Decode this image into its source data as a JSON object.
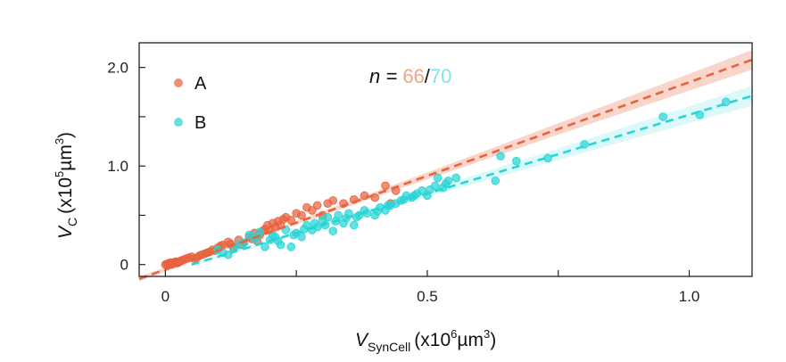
{
  "chart_data": {
    "type": "scatter",
    "title": "",
    "xlabel": {
      "base": "V",
      "sub": "SynCell",
      "unit_prefix": "(x10",
      "unit_exp": "6",
      "unit_mid": "µm",
      "unit_exp2": "3",
      "unit_suffix": ")"
    },
    "ylabel": {
      "base": "V",
      "sub": "C",
      "unit_prefix": "(x10",
      "unit_exp": "5",
      "unit_mid": "µm",
      "unit_exp2": "3",
      "unit_suffix": ")"
    },
    "xlim": [
      -0.05,
      1.12
    ],
    "ylim": [
      -0.12,
      2.25
    ],
    "x_ticks": [
      {
        "value": 0,
        "label": "0"
      },
      {
        "value": 0.25,
        "label": ""
      },
      {
        "value": 0.5,
        "label": "0.5"
      },
      {
        "value": 0.75,
        "label": ""
      },
      {
        "value": 1.0,
        "label": "1.0"
      }
    ],
    "y_ticks": [
      {
        "value": 0,
        "label": "0"
      },
      {
        "value": 0.5,
        "label": ""
      },
      {
        "value": 1.0,
        "label": "1.0"
      },
      {
        "value": 1.5,
        "label": ""
      },
      {
        "value": 2.0,
        "label": "2.0"
      }
    ],
    "annotation": {
      "prefix": "n = ",
      "a_count": "66",
      "separator": "/",
      "b_count": "70"
    },
    "legend_position": "top-left",
    "series": [
      {
        "name": "A",
        "color": "#e8633e",
        "band_color": "#f2a48c",
        "fit": {
          "slope": 1.9,
          "intercept": -0.05,
          "x_range": [
            -0.05,
            1.12
          ]
        },
        "points": [
          [
            0.0,
            0.0
          ],
          [
            0.005,
            0.01
          ],
          [
            0.01,
            0.02
          ],
          [
            0.015,
            0.01
          ],
          [
            0.02,
            0.03
          ],
          [
            0.025,
            0.02
          ],
          [
            0.03,
            0.04
          ],
          [
            0.035,
            0.05
          ],
          [
            0.04,
            0.06
          ],
          [
            0.05,
            0.08
          ],
          [
            0.06,
            0.07
          ],
          [
            0.07,
            0.1
          ],
          [
            0.08,
            0.12
          ],
          [
            0.09,
            0.15
          ],
          [
            0.1,
            0.17
          ],
          [
            0.11,
            0.2
          ],
          [
            0.12,
            0.23
          ],
          [
            0.13,
            0.18
          ],
          [
            0.14,
            0.25
          ],
          [
            0.15,
            0.22
          ],
          [
            0.16,
            0.28
          ],
          [
            0.17,
            0.32
          ],
          [
            0.18,
            0.3
          ],
          [
            0.185,
            0.34
          ],
          [
            0.19,
            0.36
          ],
          [
            0.195,
            0.4
          ],
          [
            0.2,
            0.35
          ],
          [
            0.205,
            0.42
          ],
          [
            0.21,
            0.38
          ],
          [
            0.215,
            0.44
          ],
          [
            0.22,
            0.4
          ],
          [
            0.23,
            0.48
          ],
          [
            0.24,
            0.45
          ],
          [
            0.25,
            0.52
          ],
          [
            0.26,
            0.5
          ],
          [
            0.27,
            0.58
          ],
          [
            0.28,
            0.55
          ],
          [
            0.29,
            0.6
          ],
          [
            0.3,
            0.5
          ],
          [
            0.31,
            0.62
          ],
          [
            0.32,
            0.65
          ],
          [
            0.34,
            0.62
          ],
          [
            0.36,
            0.66
          ],
          [
            0.38,
            0.7
          ],
          [
            0.4,
            0.68
          ],
          [
            0.42,
            0.8
          ],
          [
            0.43,
            0.62
          ],
          [
            0.44,
            0.75
          ],
          [
            0.003,
            0.005
          ],
          [
            0.008,
            0.015
          ],
          [
            0.012,
            0.0
          ],
          [
            0.018,
            0.025
          ],
          [
            0.022,
            0.015
          ],
          [
            0.028,
            0.03
          ],
          [
            0.045,
            0.07
          ],
          [
            0.055,
            0.06
          ],
          [
            0.065,
            0.09
          ],
          [
            0.075,
            0.11
          ],
          [
            0.085,
            0.13
          ],
          [
            0.095,
            0.14
          ],
          [
            0.105,
            0.19
          ],
          [
            0.125,
            0.21
          ],
          [
            0.145,
            0.2
          ],
          [
            0.165,
            0.26
          ],
          [
            0.175,
            0.24
          ],
          [
            0.225,
            0.46
          ]
        ]
      },
      {
        "name": "B",
        "color": "#2ad4d6",
        "band_color": "#9aeeee",
        "fit": {
          "slope": 1.6,
          "intercept": -0.08,
          "x_range": [
            0.05,
            1.12
          ]
        },
        "points": [
          [
            0.1,
            0.15
          ],
          [
            0.12,
            0.1
          ],
          [
            0.14,
            0.2
          ],
          [
            0.16,
            0.3
          ],
          [
            0.17,
            0.26
          ],
          [
            0.18,
            0.33
          ],
          [
            0.19,
            0.18
          ],
          [
            0.2,
            0.25
          ],
          [
            0.21,
            0.28
          ],
          [
            0.22,
            0.2
          ],
          [
            0.23,
            0.35
          ],
          [
            0.24,
            0.18
          ],
          [
            0.25,
            0.32
          ],
          [
            0.26,
            0.28
          ],
          [
            0.27,
            0.4
          ],
          [
            0.28,
            0.35
          ],
          [
            0.29,
            0.38
          ],
          [
            0.3,
            0.45
          ],
          [
            0.31,
            0.48
          ],
          [
            0.32,
            0.34
          ],
          [
            0.33,
            0.5
          ],
          [
            0.34,
            0.42
          ],
          [
            0.35,
            0.52
          ],
          [
            0.36,
            0.4
          ],
          [
            0.37,
            0.5
          ],
          [
            0.38,
            0.55
          ],
          [
            0.4,
            0.5
          ],
          [
            0.41,
            0.58
          ],
          [
            0.42,
            0.55
          ],
          [
            0.43,
            0.6
          ],
          [
            0.44,
            0.62
          ],
          [
            0.45,
            0.65
          ],
          [
            0.46,
            0.7
          ],
          [
            0.47,
            0.68
          ],
          [
            0.48,
            0.72
          ],
          [
            0.49,
            0.75
          ],
          [
            0.5,
            0.7
          ],
          [
            0.52,
            0.88
          ],
          [
            0.53,
            0.78
          ],
          [
            0.54,
            0.85
          ],
          [
            0.63,
            0.85
          ],
          [
            0.64,
            1.1
          ],
          [
            0.67,
            1.05
          ],
          [
            0.73,
            1.08
          ],
          [
            0.8,
            1.22
          ],
          [
            0.95,
            1.5
          ],
          [
            1.02,
            1.52
          ],
          [
            1.07,
            1.65
          ],
          [
            0.11,
            0.12
          ],
          [
            0.13,
            0.16
          ],
          [
            0.15,
            0.22
          ],
          [
            0.175,
            0.28
          ],
          [
            0.205,
            0.3
          ],
          [
            0.215,
            0.24
          ],
          [
            0.245,
            0.3
          ],
          [
            0.265,
            0.36
          ],
          [
            0.285,
            0.42
          ],
          [
            0.305,
            0.4
          ],
          [
            0.325,
            0.44
          ],
          [
            0.345,
            0.47
          ],
          [
            0.365,
            0.48
          ],
          [
            0.385,
            0.52
          ],
          [
            0.405,
            0.54
          ],
          [
            0.425,
            0.6
          ],
          [
            0.455,
            0.66
          ],
          [
            0.475,
            0.7
          ],
          [
            0.505,
            0.76
          ],
          [
            0.515,
            0.8
          ],
          [
            0.535,
            0.82
          ],
          [
            0.555,
            0.88
          ]
        ]
      }
    ]
  }
}
